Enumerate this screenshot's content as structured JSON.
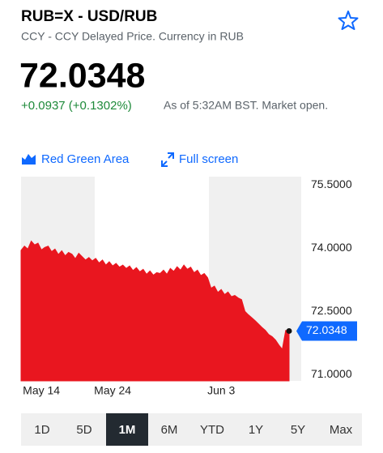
{
  "quote": {
    "title": "RUB=X - USD/RUB",
    "subtitle": "CCY - CCY Delayed Price. Currency in RUB",
    "price": 72.0348,
    "change": "+0.0937 (+0.1302%)",
    "market_time": "As of 5:32AM BST. Market open."
  },
  "toolbar": {
    "chart_style": "Red Green Area",
    "fullscreen": "Full screen"
  },
  "ranges": [
    "1D",
    "5D",
    "1M",
    "6M",
    "YTD",
    "1Y",
    "5Y",
    "Max"
  ],
  "selected_range": "1M",
  "chart_data": {
    "type": "area",
    "categories": [
      null,
      null,
      null,
      null,
      null,
      null,
      "May 14",
      null,
      null,
      null,
      null,
      null,
      null,
      null,
      null,
      null,
      null,
      null,
      null,
      null,
      null,
      null,
      null,
      null,
      null,
      null,
      null,
      "May 24",
      null,
      null,
      null,
      null,
      null,
      null,
      null,
      null,
      null,
      null,
      null,
      null,
      null,
      null,
      null,
      null,
      null,
      null,
      null,
      null,
      null,
      null,
      null,
      null,
      null,
      null,
      null,
      null,
      null,
      null,
      null,
      "Jun 3",
      null,
      null,
      null,
      null,
      null,
      null,
      null,
      null,
      null,
      null,
      null,
      null,
      null,
      null,
      null,
      null,
      null,
      null,
      null,
      null
    ],
    "series": [
      {
        "name": "RUB=X",
        "color": "#e9161f",
        "values": [
          73.95,
          74.05,
          73.98,
          74.17,
          74.08,
          74.12,
          73.96,
          74.02,
          74.05,
          73.92,
          73.98,
          73.85,
          73.94,
          73.82,
          73.9,
          73.86,
          73.75,
          73.88,
          73.8,
          73.72,
          73.78,
          73.7,
          73.76,
          73.65,
          73.72,
          73.6,
          73.68,
          73.58,
          73.64,
          73.55,
          73.6,
          73.52,
          73.58,
          73.47,
          73.54,
          73.44,
          73.5,
          73.38,
          73.46,
          73.36,
          73.42,
          73.4,
          73.48,
          73.38,
          73.52,
          73.45,
          73.56,
          73.48,
          73.6,
          73.5,
          73.55,
          73.42,
          73.48,
          73.35,
          73.4,
          73.3,
          73.05,
          73.1,
          72.95,
          73.02,
          72.9,
          72.96,
          72.85,
          72.88,
          72.82,
          72.78,
          72.5,
          72.42,
          72.35,
          72.28,
          72.2,
          72.12,
          72.05,
          71.95,
          71.9,
          71.82,
          71.7,
          71.6,
          72.05,
          72.0348
        ]
      }
    ],
    "ylim": [
      70.85,
      75.7
    ],
    "yticks": [
      {
        "value": 75.5,
        "label": "75.5000"
      },
      {
        "value": 74,
        "label": "74.0000"
      },
      {
        "value": 72.5,
        "label": "72.5000"
      },
      {
        "value": 71,
        "label": "71.0000"
      }
    ]
  }
}
